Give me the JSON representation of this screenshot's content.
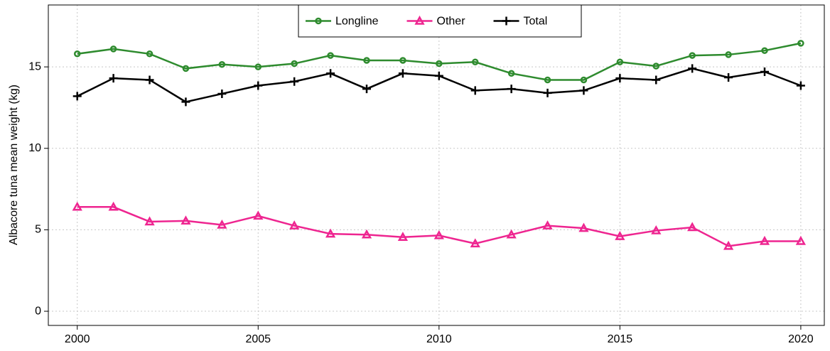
{
  "chart_data": {
    "type": "line",
    "y_label": "Albacore tuna mean weight (kg)",
    "x": [
      2000,
      2001,
      2002,
      2003,
      2004,
      2005,
      2006,
      2007,
      2008,
      2009,
      2010,
      2011,
      2012,
      2013,
      2014,
      2015,
      2016,
      2017,
      2018,
      2019,
      2020
    ],
    "series": [
      {
        "name": "Longline",
        "color": "#2e8b2e",
        "marker": "circle",
        "values": [
          15.8,
          16.1,
          15.8,
          14.9,
          15.15,
          15.0,
          15.2,
          15.7,
          15.4,
          15.4,
          15.2,
          15.3,
          14.6,
          14.2,
          14.2,
          15.3,
          15.05,
          15.7,
          15.75,
          16.0,
          16.45
        ]
      },
      {
        "name": "Other",
        "color": "#ee2590",
        "marker": "triangle",
        "values": [
          6.4,
          6.4,
          5.5,
          5.55,
          5.3,
          5.85,
          5.25,
          4.75,
          4.7,
          4.55,
          4.65,
          4.15,
          4.7,
          5.25,
          5.1,
          4.6,
          4.95,
          5.15,
          4.0,
          4.3,
          4.3
        ]
      },
      {
        "name": "Total",
        "color": "#000000",
        "marker": "plus",
        "values": [
          13.2,
          14.3,
          14.2,
          12.85,
          13.35,
          13.85,
          14.1,
          14.6,
          13.65,
          14.6,
          14.45,
          13.55,
          13.65,
          13.4,
          13.55,
          14.3,
          14.2,
          14.9,
          14.35,
          14.7,
          13.85
        ]
      }
    ],
    "xlim": [
      1999.2,
      2020.65
    ],
    "xticks": [
      2000,
      2005,
      2010,
      2015,
      2020
    ],
    "ylim": [
      -0.87,
      18.8
    ],
    "yticks": [
      0,
      5,
      10,
      15
    ],
    "grid": true,
    "legend": "top"
  }
}
